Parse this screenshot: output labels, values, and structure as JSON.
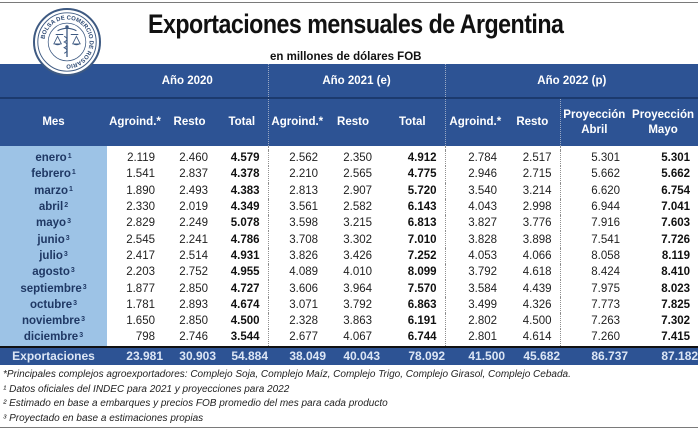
{
  "header": {
    "title": "Exportaciones mensuales de Argentina",
    "subtitle": "en millones de dólares FOB",
    "logo_text": "BOLSA DE COMERCIO DE ROSARIO"
  },
  "colors": {
    "header_blue": "#2d5394",
    "month_column_blue": "#9dc3e6",
    "header_text": "#ffffff"
  },
  "table": {
    "year_groups": [
      {
        "label": "Año 2020"
      },
      {
        "label": "Año 2021 (e)"
      },
      {
        "label": "Año 2022 (p)"
      }
    ],
    "columns": {
      "mes": "Mes",
      "c2020": [
        "Agroind.*",
        "Resto",
        "Total"
      ],
      "c2021": [
        "Agroind.*",
        "Resto",
        "Total"
      ],
      "c2022": [
        "Agroind.*",
        "Resto",
        "Proyección",
        "Proyección"
      ],
      "c2022_sub": [
        "",
        "",
        "Abril",
        "Mayo"
      ]
    },
    "rows": [
      {
        "mes": "enero",
        "sup": "1",
        "v": [
          "2.119",
          "2.460",
          "4.579",
          "2.562",
          "2.350",
          "4.912",
          "2.784",
          "2.517",
          "5.301",
          "5.301"
        ]
      },
      {
        "mes": "febrero",
        "sup": "1",
        "v": [
          "1.541",
          "2.837",
          "4.378",
          "2.210",
          "2.565",
          "4.775",
          "2.946",
          "2.715",
          "5.662",
          "5.662"
        ]
      },
      {
        "mes": "marzo",
        "sup": "1",
        "v": [
          "1.890",
          "2.493",
          "4.383",
          "2.813",
          "2.907",
          "5.720",
          "3.540",
          "3.214",
          "6.620",
          "6.754"
        ]
      },
      {
        "mes": "abril",
        "sup": "2",
        "v": [
          "2.330",
          "2.019",
          "4.349",
          "3.561",
          "2.582",
          "6.143",
          "4.043",
          "2.998",
          "6.944",
          "7.041"
        ]
      },
      {
        "mes": "mayo",
        "sup": "3",
        "v": [
          "2.829",
          "2.249",
          "5.078",
          "3.598",
          "3.215",
          "6.813",
          "3.827",
          "3.776",
          "7.916",
          "7.603"
        ]
      },
      {
        "mes": "junio",
        "sup": "3",
        "v": [
          "2.545",
          "2.241",
          "4.786",
          "3.708",
          "3.302",
          "7.010",
          "3.828",
          "3.898",
          "7.541",
          "7.726"
        ]
      },
      {
        "mes": "julio",
        "sup": "3",
        "v": [
          "2.417",
          "2.514",
          "4.931",
          "3.826",
          "3.426",
          "7.252",
          "4.053",
          "4.066",
          "8.058",
          "8.119"
        ]
      },
      {
        "mes": "agosto",
        "sup": "3",
        "v": [
          "2.203",
          "2.752",
          "4.955",
          "4.089",
          "4.010",
          "8.099",
          "3.792",
          "4.618",
          "8.424",
          "8.410"
        ]
      },
      {
        "mes": "septiembre",
        "sup": "3",
        "v": [
          "1.877",
          "2.850",
          "4.727",
          "3.606",
          "3.964",
          "7.570",
          "3.584",
          "4.439",
          "7.975",
          "8.023"
        ]
      },
      {
        "mes": "octubre",
        "sup": "3",
        "v": [
          "1.781",
          "2.893",
          "4.674",
          "3.071",
          "3.792",
          "6.863",
          "3.499",
          "4.326",
          "7.773",
          "7.825"
        ]
      },
      {
        "mes": "noviembre",
        "sup": "3",
        "v": [
          "1.650",
          "2.850",
          "4.500",
          "2.328",
          "3.863",
          "6.191",
          "2.802",
          "4.500",
          "7.263",
          "7.302"
        ]
      },
      {
        "mes": "diciembre",
        "sup": "3",
        "v": [
          "798",
          "2.746",
          "3.544",
          "2.677",
          "4.067",
          "6.744",
          "2.801",
          "4.614",
          "7.260",
          "7.415"
        ]
      }
    ],
    "totals": {
      "label": "Exportaciones",
      "v": [
        "23.981",
        "30.903",
        "54.884",
        "38.049",
        "40.043",
        "78.092",
        "41.500",
        "45.682",
        "86.737",
        "87.182"
      ]
    }
  },
  "footnotes": [
    {
      "mark": "*",
      "text": "Principales complejos agroexportadores: Complejo Soja, Complejo Maíz, Complejo Trigo, Complejo Girasol, Complejo Cebada."
    },
    {
      "mark": "¹",
      "text": " Datos oficiales del INDEC para 2021 y proyecciones para 2022"
    },
    {
      "mark": "²",
      "text": " Estimado en base a embarques y precios FOB promedio del mes para cada producto"
    },
    {
      "mark": "³",
      "text": " Proyectado en base a estimaciones propias"
    }
  ]
}
